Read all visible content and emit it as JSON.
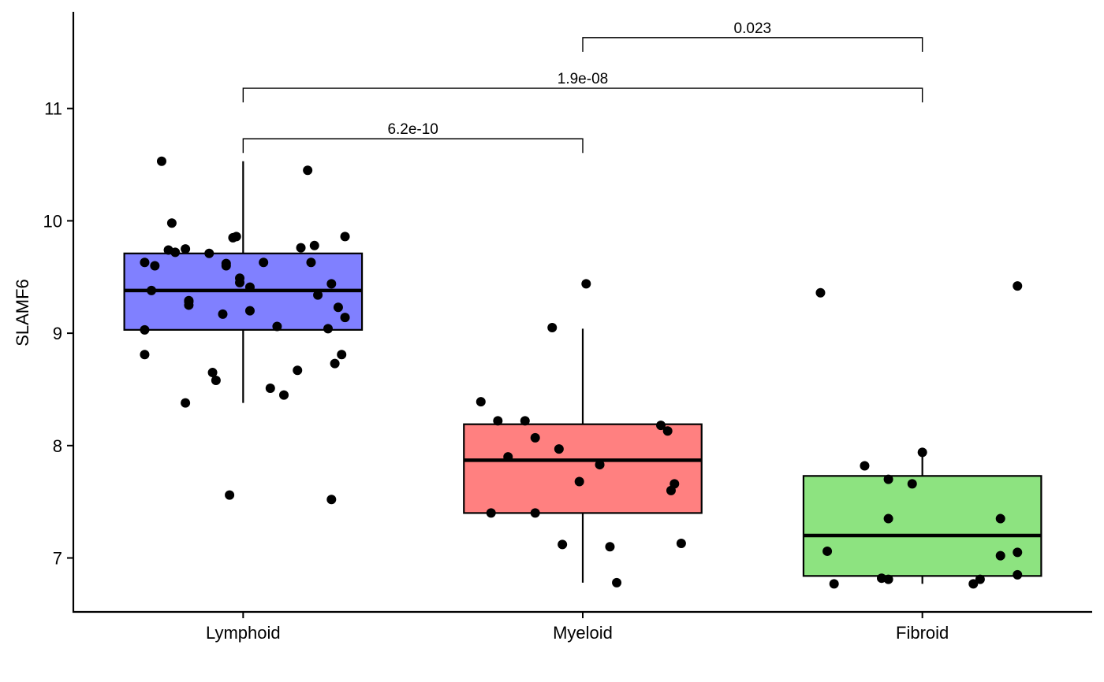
{
  "chart_data": {
    "type": "boxplot",
    "ylabel": "SLAMF6",
    "xlabel": "",
    "ylim": [
      6.52,
      11.86
    ],
    "yticks": [
      7,
      8,
      9,
      10,
      11
    ],
    "categories": [
      "Lymphoid",
      "Myeloid",
      "Fibroid"
    ],
    "boxes": [
      {
        "name": "Lymphoid",
        "color": "#8080FF",
        "whisker_low": 8.38,
        "q1": 9.03,
        "median": 9.38,
        "q3": 9.71,
        "whisker_high": 10.53,
        "points": [
          [
            -0.24,
            10.53
          ],
          [
            0.19,
            10.45
          ],
          [
            -0.21,
            9.98
          ],
          [
            -0.02,
            9.86
          ],
          [
            -0.03,
            9.85
          ],
          [
            0.3,
            9.86
          ],
          [
            -0.22,
            9.74
          ],
          [
            -0.17,
            9.75
          ],
          [
            -0.2,
            9.72
          ],
          [
            -0.1,
            9.71
          ],
          [
            0.21,
            9.78
          ],
          [
            0.17,
            9.76
          ],
          [
            -0.29,
            9.63
          ],
          [
            -0.26,
            9.6
          ],
          [
            -0.05,
            9.6
          ],
          [
            -0.05,
            9.62
          ],
          [
            0.06,
            9.63
          ],
          [
            0.2,
            9.63
          ],
          [
            -0.01,
            9.49
          ],
          [
            -0.01,
            9.45
          ],
          [
            0.02,
            9.41
          ],
          [
            0.26,
            9.44
          ],
          [
            -0.27,
            9.38
          ],
          [
            -0.16,
            9.29
          ],
          [
            -0.16,
            9.28
          ],
          [
            -0.16,
            9.25
          ],
          [
            0.22,
            9.34
          ],
          [
            0.28,
            9.23
          ],
          [
            -0.06,
            9.17
          ],
          [
            0.02,
            9.2
          ],
          [
            0.3,
            9.14
          ],
          [
            -0.29,
            9.03
          ],
          [
            0.1,
            9.06
          ],
          [
            0.25,
            9.04
          ],
          [
            -0.29,
            8.81
          ],
          [
            0.29,
            8.81
          ],
          [
            0.27,
            8.73
          ],
          [
            -0.09,
            8.65
          ],
          [
            0.16,
            8.67
          ],
          [
            -0.08,
            8.58
          ],
          [
            0.08,
            8.51
          ],
          [
            0.12,
            8.45
          ],
          [
            -0.17,
            8.38
          ],
          [
            -0.04,
            7.56
          ],
          [
            0.26,
            7.52
          ]
        ]
      },
      {
        "name": "Myeloid",
        "color": "#FF8080",
        "whisker_low": 6.78,
        "q1": 7.4,
        "median": 7.87,
        "q3": 8.19,
        "whisker_high": 9.04,
        "points": [
          [
            0.01,
            9.44
          ],
          [
            -0.09,
            9.05
          ],
          [
            -0.3,
            8.39
          ],
          [
            -0.25,
            8.22
          ],
          [
            -0.17,
            8.22
          ],
          [
            0.23,
            8.18
          ],
          [
            0.25,
            8.13
          ],
          [
            -0.14,
            8.07
          ],
          [
            -0.07,
            7.97
          ],
          [
            -0.22,
            7.9
          ],
          [
            0.05,
            7.83
          ],
          [
            -0.01,
            7.68
          ],
          [
            0.27,
            7.66
          ],
          [
            0.26,
            7.6
          ],
          [
            -0.27,
            7.4
          ],
          [
            -0.14,
            7.4
          ],
          [
            -0.06,
            7.12
          ],
          [
            0.08,
            7.1
          ],
          [
            0.29,
            7.13
          ],
          [
            0.1,
            6.78
          ]
        ]
      },
      {
        "name": "Fibroid",
        "color": "#8DE380",
        "whisker_low": 6.77,
        "q1": 6.84,
        "median": 7.2,
        "q3": 7.73,
        "whisker_high": 7.94,
        "points": [
          [
            -0.3,
            9.36
          ],
          [
            0.28,
            9.42
          ],
          [
            -0.0,
            7.94
          ],
          [
            -0.17,
            7.82
          ],
          [
            -0.1,
            7.7
          ],
          [
            -0.03,
            7.66
          ],
          [
            -0.1,
            7.35
          ],
          [
            0.23,
            7.35
          ],
          [
            -0.28,
            7.06
          ],
          [
            0.28,
            7.05
          ],
          [
            0.23,
            7.02
          ],
          [
            -0.26,
            6.77
          ],
          [
            -0.12,
            6.82
          ],
          [
            -0.1,
            6.81
          ],
          [
            0.17,
            6.81
          ],
          [
            0.28,
            6.85
          ],
          [
            0.15,
            6.77
          ]
        ]
      }
    ],
    "comparisons": [
      {
        "from": 0,
        "to": 1,
        "y": 10.73,
        "label": "6.2e-10"
      },
      {
        "from": 0,
        "to": 2,
        "y": 11.18,
        "label": "1.9e-08"
      },
      {
        "from": 1,
        "to": 2,
        "y": 11.63,
        "label": "0.023"
      }
    ]
  }
}
